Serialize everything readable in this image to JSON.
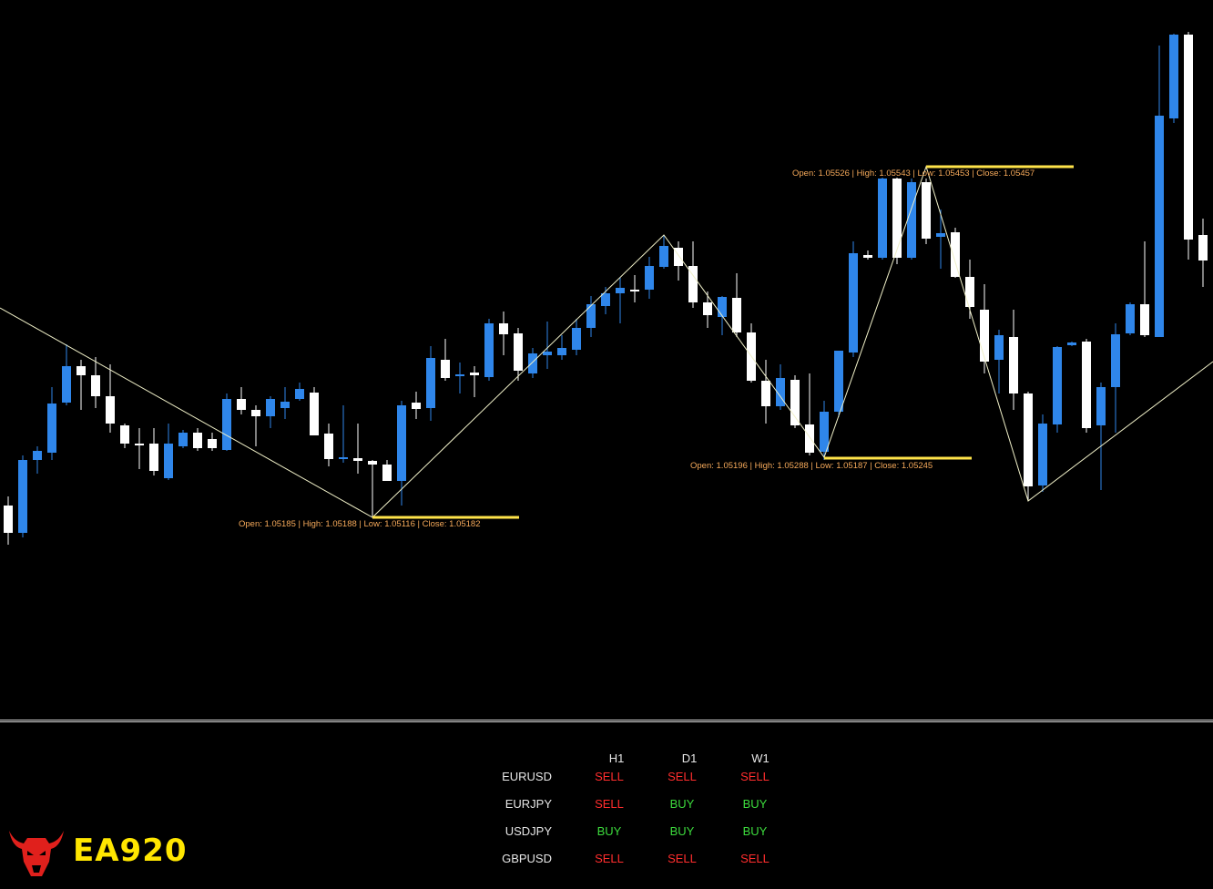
{
  "colors": {
    "background": "#000000",
    "bull_candle": "#2f86ea",
    "bear_candle": "#ffffff",
    "zigzag": "#f0f0c8",
    "level_line": "#ffe44a",
    "label_text": "#f5a95a",
    "sell": "#ff2d2d",
    "buy": "#3ddc3d",
    "logo_red": "#e0201c",
    "logo_yellow": "#ffe600"
  },
  "annotations": [
    {
      "text": "Open: 1.05185 | High: 1.05188 | Low: 1.05116 | Close: 1.05182"
    },
    {
      "text": "Open: 1.05196 | High: 1.05288 | Low: 1.05187 | Close: 1.05245"
    },
    {
      "text": "Open: 1.05526 | High: 1.05543 | Low: 1.05453 | Close: 1.05457"
    }
  ],
  "signals": {
    "timeframes": [
      "H1",
      "D1",
      "W1"
    ],
    "rows": [
      {
        "symbol": "EURUSD",
        "values": [
          "SELL",
          "SELL",
          "SELL"
        ]
      },
      {
        "symbol": "EURJPY",
        "values": [
          "SELL",
          "BUY",
          "BUY"
        ]
      },
      {
        "symbol": "USDJPY",
        "values": [
          "BUY",
          "BUY",
          "BUY"
        ]
      },
      {
        "symbol": "GBPUSD",
        "values": [
          "SELL",
          "SELL",
          "SELL"
        ]
      }
    ]
  },
  "logo": {
    "text": "EA920",
    "icon": "bull-head-icon"
  }
}
